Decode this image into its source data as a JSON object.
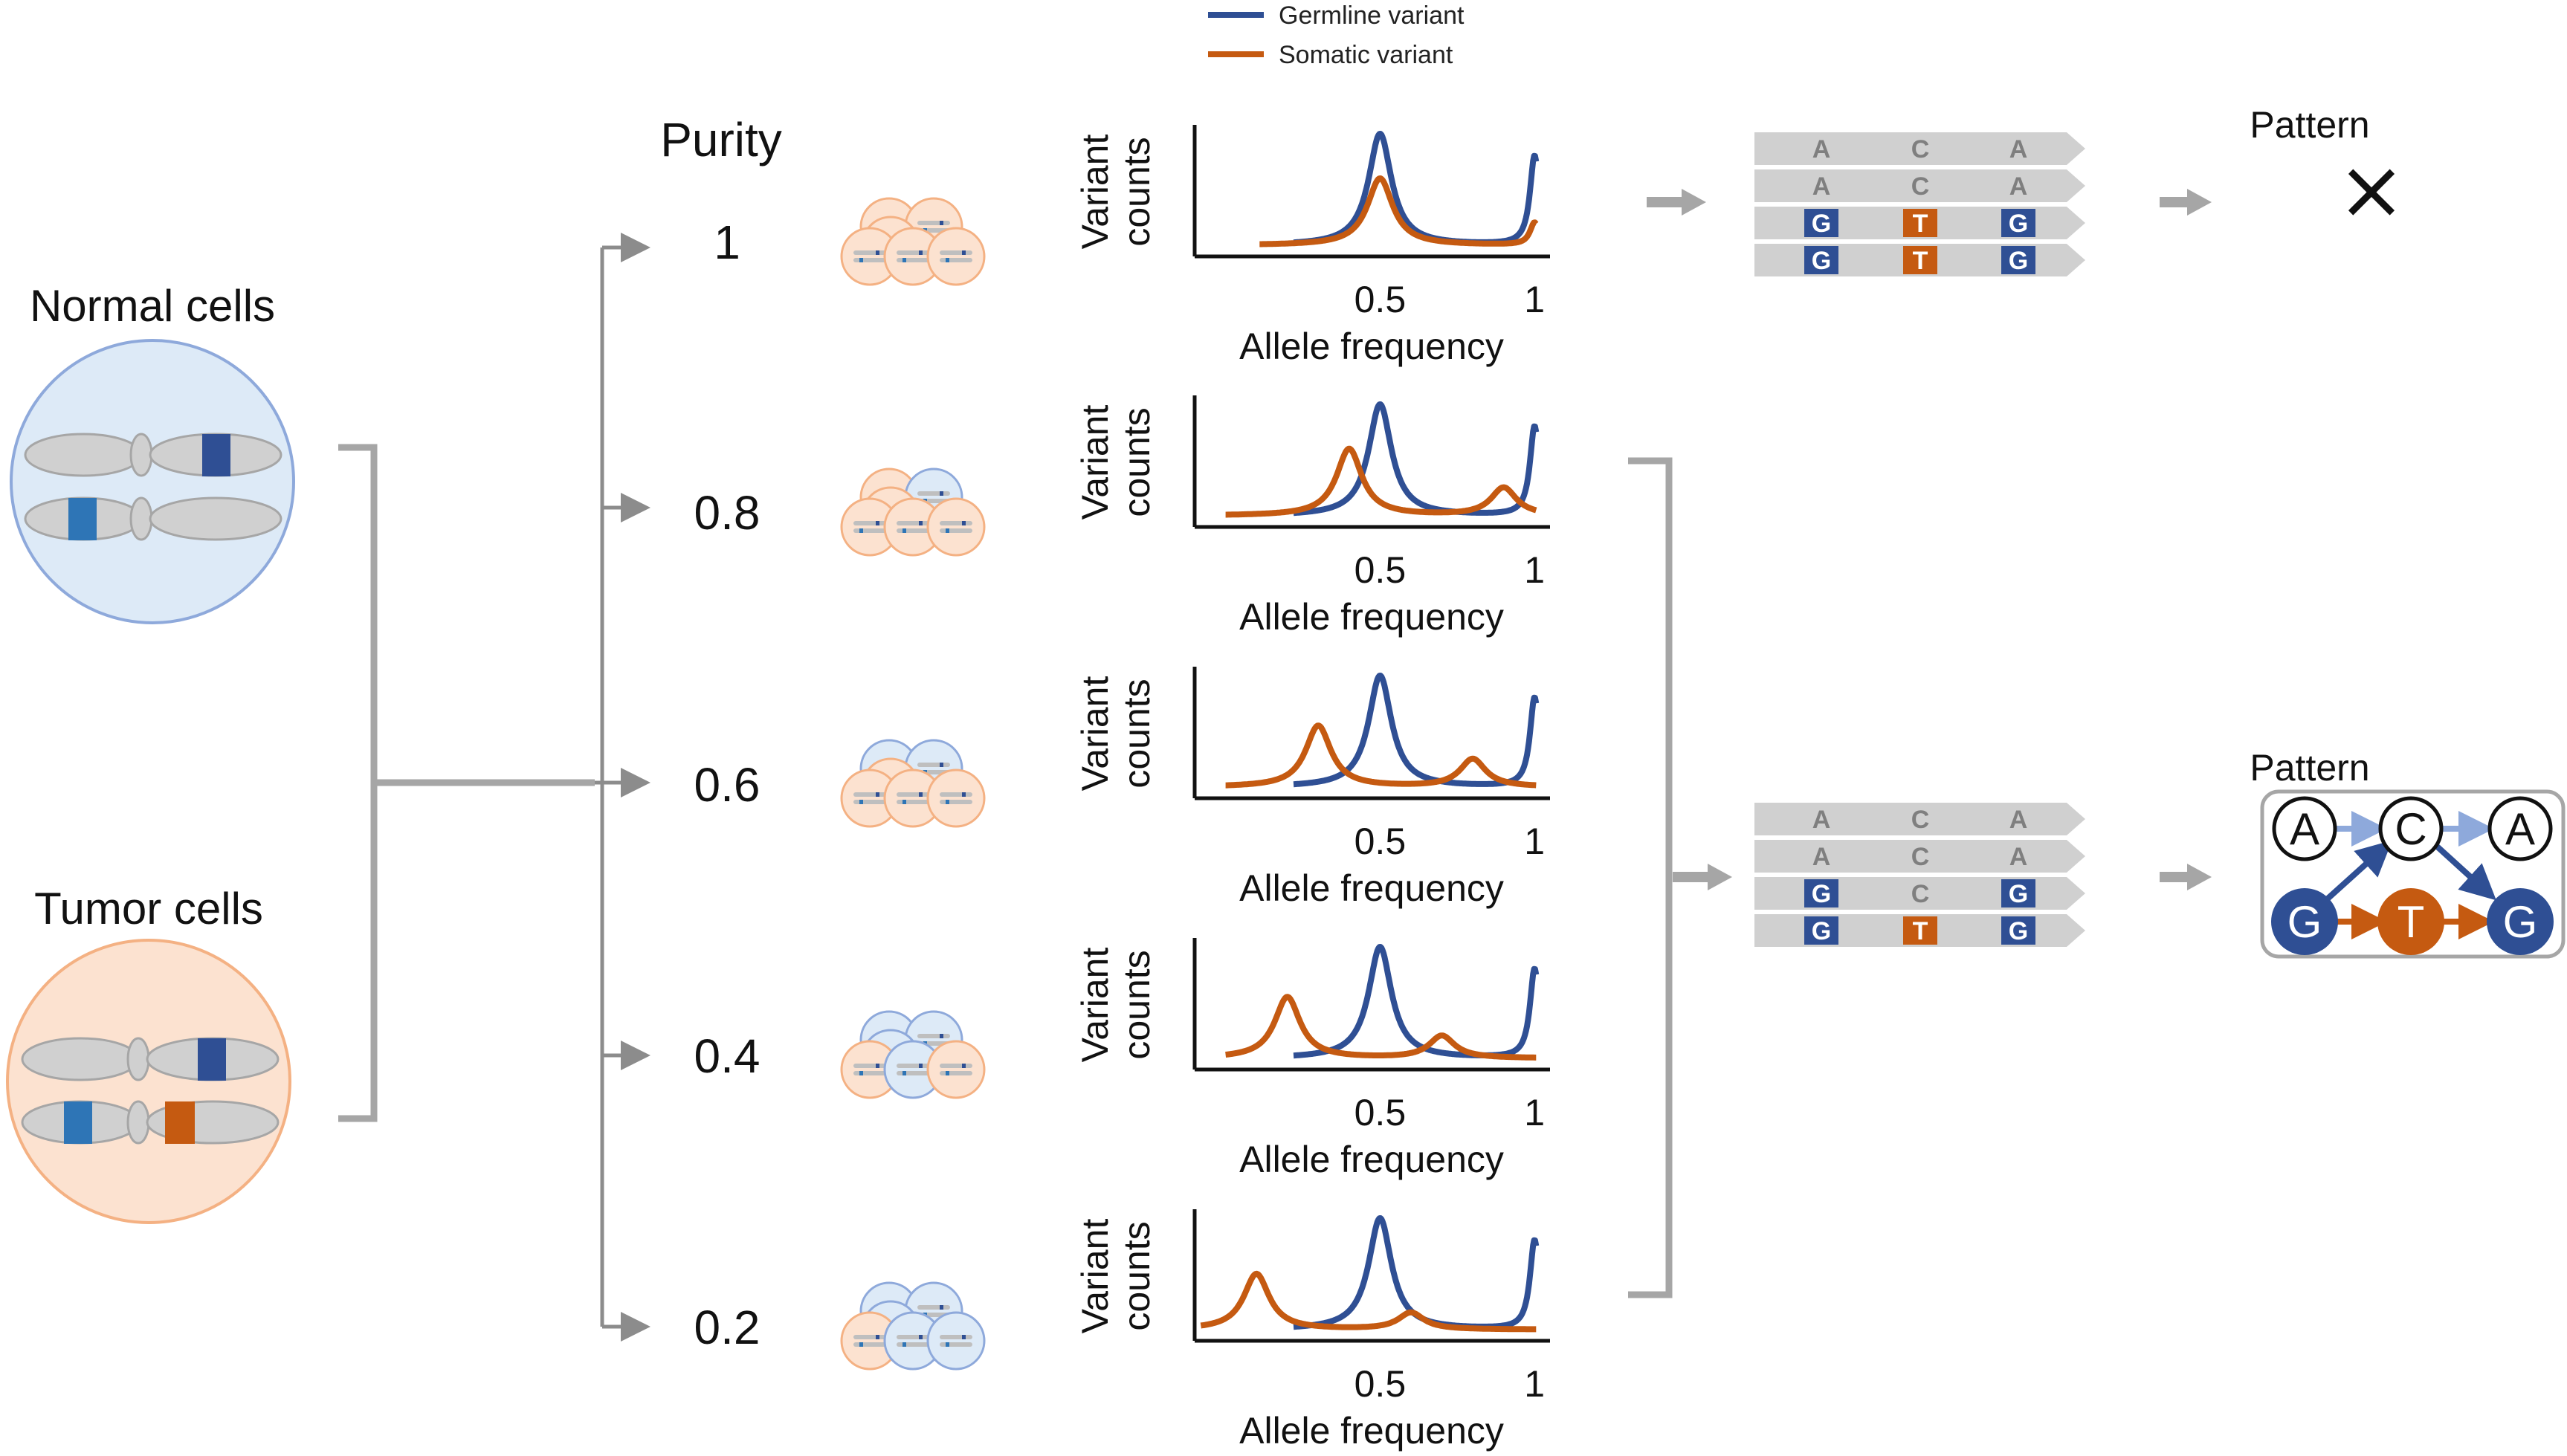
{
  "legend": {
    "germline": "Germline variant",
    "somatic": "Somatic variant",
    "germline_color": "#2F4F94",
    "somatic_color": "#C55A11"
  },
  "cells": {
    "normal_label": "Normal cells",
    "tumor_label": "Tumor cells",
    "normal_fill": "#DDEAF7",
    "tumor_fill": "#FCE2D0"
  },
  "purity": {
    "title": "Purity",
    "levels": [
      "1",
      "0.8",
      "0.6",
      "0.4",
      "0.2"
    ]
  },
  "plots": {
    "ylabel_line1": "Variant",
    "ylabel_line2": "counts",
    "xlabel": "Allele frequency",
    "tick_labels": [
      "0.5",
      "1"
    ]
  },
  "chart_data": [
    {
      "type": "line",
      "purity": "1",
      "xlabel": "Allele frequency",
      "ylabel": "Variant counts",
      "xticks": [
        "0.5",
        "1"
      ],
      "series": [
        {
          "name": "Germline variant",
          "peaks": [
            {
              "af": 0.5,
              "height": 1.0
            },
            {
              "af": 1.0,
              "height": 0.8
            }
          ]
        },
        {
          "name": "Somatic variant",
          "peaks": [
            {
              "af": 0.5,
              "height": 0.6
            },
            {
              "af": 1.0,
              "height": 0.2
            }
          ]
        }
      ]
    },
    {
      "type": "line",
      "purity": "0.8",
      "xlabel": "Allele frequency",
      "ylabel": "Variant counts",
      "xticks": [
        "0.5",
        "1"
      ],
      "series": [
        {
          "name": "Germline variant",
          "peaks": [
            {
              "af": 0.5,
              "height": 1.0
            },
            {
              "af": 1.0,
              "height": 0.8
            }
          ]
        },
        {
          "name": "Somatic variant",
          "peaks": [
            {
              "af": 0.4,
              "height": 0.6
            },
            {
              "af": 0.9,
              "height": 0.25
            }
          ]
        }
      ]
    },
    {
      "type": "line",
      "purity": "0.6",
      "xlabel": "Allele frequency",
      "ylabel": "Variant counts",
      "xticks": [
        "0.5",
        "1"
      ],
      "series": [
        {
          "name": "Germline variant",
          "peaks": [
            {
              "af": 0.5,
              "height": 1.0
            },
            {
              "af": 1.0,
              "height": 0.8
            }
          ]
        },
        {
          "name": "Somatic variant",
          "peaks": [
            {
              "af": 0.3,
              "height": 0.55
            },
            {
              "af": 0.8,
              "height": 0.25
            }
          ]
        }
      ]
    },
    {
      "type": "line",
      "purity": "0.4",
      "xlabel": "Allele frequency",
      "ylabel": "Variant counts",
      "xticks": [
        "0.5",
        "1"
      ],
      "series": [
        {
          "name": "Germline variant",
          "peaks": [
            {
              "af": 0.5,
              "height": 1.0
            },
            {
              "af": 1.0,
              "height": 0.8
            }
          ]
        },
        {
          "name": "Somatic variant",
          "peaks": [
            {
              "af": 0.2,
              "height": 0.55
            },
            {
              "af": 0.7,
              "height": 0.2
            }
          ]
        }
      ]
    },
    {
      "type": "line",
      "purity": "0.2",
      "xlabel": "Allele frequency",
      "ylabel": "Variant counts",
      "xticks": [
        "0.5",
        "1"
      ],
      "series": [
        {
          "name": "Germline variant",
          "peaks": [
            {
              "af": 0.5,
              "height": 1.0
            },
            {
              "af": 1.0,
              "height": 0.8
            }
          ]
        },
        {
          "name": "Somatic variant",
          "peaks": [
            {
              "af": 0.1,
              "height": 0.5
            },
            {
              "af": 0.6,
              "height": 0.15
            }
          ]
        }
      ]
    }
  ],
  "reads_top": [
    [
      "A",
      "C",
      "A"
    ],
    [
      "A",
      "C",
      "A"
    ],
    [
      "G",
      "T",
      "G"
    ],
    [
      "G",
      "T",
      "G"
    ]
  ],
  "reads_bottom": [
    [
      "A",
      "C",
      "A"
    ],
    [
      "A",
      "C",
      "A"
    ],
    [
      "G",
      "C",
      "G"
    ],
    [
      "G",
      "T",
      "G"
    ]
  ],
  "pattern_top": {
    "title": "Pattern",
    "result": "×"
  },
  "pattern_bottom": {
    "title": "Pattern",
    "nodes_top": [
      "A",
      "C",
      "A"
    ],
    "nodes_bottom": [
      "G",
      "T",
      "G"
    ]
  }
}
